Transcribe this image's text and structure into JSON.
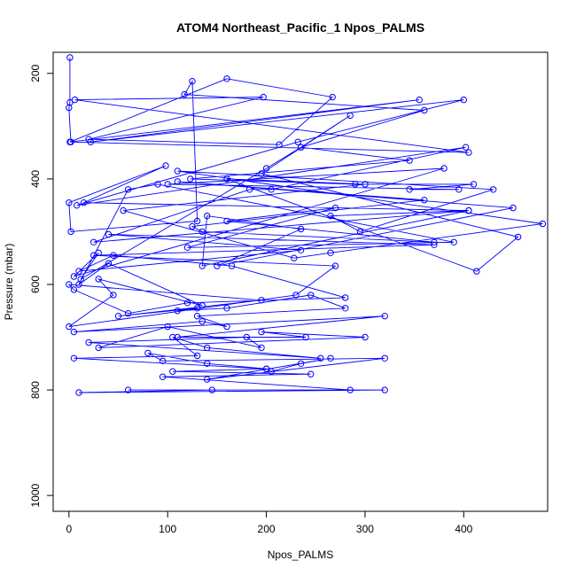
{
  "chart_data": {
    "type": "line",
    "title": "ATOM4 Northeast_Pacific_1 Npos_PALMS",
    "xlabel": "Npos_PALMS",
    "ylabel": "Pressure (mbar)",
    "xlim": [
      -16,
      485
    ],
    "ylim": [
      1030,
      160
    ],
    "x_ticks": [
      0,
      100,
      200,
      300,
      400
    ],
    "y_ticks": [
      200,
      400,
      600,
      800,
      1000
    ],
    "y_reversed": true,
    "grid": false,
    "series": [
      {
        "line_color": "#0000ff",
        "marker": "open-circle",
        "x": [
          1,
          1,
          0,
          2,
          405,
          6,
          197,
          20,
          213,
          267,
          160,
          1,
          355,
          22,
          400,
          232,
          8,
          402,
          205,
          183,
          25,
          405,
          15,
          98,
          0,
          2,
          130,
          125,
          117,
          360,
          235,
          345,
          123,
          290,
          410,
          345,
          395,
          100,
          380,
          5,
          30,
          12,
          200,
          235,
          285,
          195,
          455,
          413,
          160,
          300,
          55,
          228,
          265,
          480,
          110,
          430,
          295,
          265,
          405,
          135,
          140,
          235,
          150,
          450,
          110,
          360,
          125,
          135,
          370,
          160,
          270,
          120,
          390,
          90,
          60,
          10,
          40,
          135,
          30,
          45,
          0,
          230,
          270,
          25,
          370,
          40,
          235,
          10,
          45,
          165,
          280,
          120,
          60,
          5,
          0,
          195,
          50,
          130,
          110,
          160,
          245,
          280,
          130,
          160,
          135,
          5,
          320,
          110,
          240,
          195,
          300,
          30,
          100,
          195,
          180,
          20,
          255,
          140,
          105,
          130,
          5,
          200,
          205,
          235,
          265,
          140,
          320,
          95,
          80,
          140,
          200,
          105,
          245,
          95,
          285,
          60,
          320,
          10,
          145
        ],
        "y": [
          170,
          255,
          265,
          330,
          350,
          250,
          245,
          325,
          335,
          245,
          210,
          330,
          250,
          330,
          250,
          330,
          450,
          340,
          420,
          420,
          520,
          460,
          445,
          375,
          445,
          500,
          480,
          215,
          240,
          270,
          340,
          365,
          400,
          410,
          410,
          420,
          420,
          410,
          380,
          585,
          540,
          590,
          380,
          340,
          280,
          390,
          510,
          575,
          400,
          410,
          460,
          550,
          540,
          485,
          385,
          420,
          500,
          470,
          460,
          565,
          470,
          495,
          565,
          455,
          405,
          440,
          490,
          500,
          520,
          480,
          455,
          530,
          520,
          410,
          420,
          600,
          560,
          640,
          590,
          620,
          680,
          620,
          565,
          545,
          525,
          505,
          535,
          575,
          545,
          565,
          625,
          635,
          655,
          610,
          600,
          630,
          660,
          645,
          650,
          645,
          620,
          645,
          660,
          680,
          670,
          690,
          660,
          700,
          700,
          690,
          700,
          720,
          680,
          720,
          700,
          710,
          740,
          720,
          700,
          735,
          740,
          760,
          765,
          750,
          740,
          780,
          740,
          745,
          730,
          750,
          760,
          765,
          770,
          775,
          800,
          800,
          800,
          805,
          800
        ]
      }
    ]
  }
}
